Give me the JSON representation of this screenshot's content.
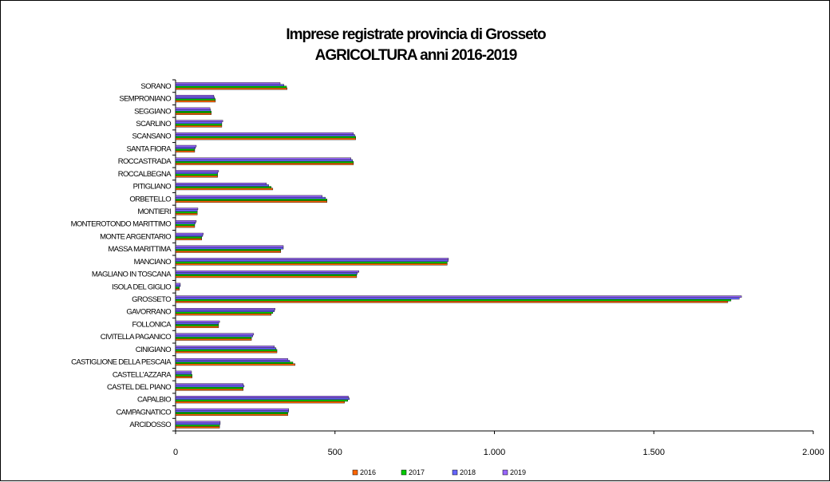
{
  "chart_data": {
    "type": "bar",
    "orientation": "horizontal",
    "title": [
      "Imprese registrate provincia di Grosseto",
      "AGRICOLTURA anni 2016-2019"
    ],
    "xlim": [
      0,
      2000
    ],
    "x_ticks": [
      "0",
      "500",
      "1.000",
      "1.500",
      "2.000"
    ],
    "x_tick_values": [
      0,
      500,
      1000,
      1500,
      2000
    ],
    "legend_position": "bottom",
    "categories": [
      "SORANO",
      "SEMPRONIANO",
      "SEGGIANO",
      "SCARLINO",
      "SCANSANO",
      "SANTA FIORA",
      "ROCCASTRADA",
      "ROCCALBEGNA",
      "PITIGLIANO",
      "ORBETELLO",
      "MONTIERI",
      "MONTEROTONDO MARITTIMO",
      "MONTE ARGENTARIO",
      "MASSA MARITTIMA",
      "MANCIANO",
      "MAGLIANO IN TOSCANA",
      "ISOLA DEL GIGLIO",
      "GROSSETO",
      "GAVORRANO",
      "FOLLONICA",
      "CIVITELLA PAGANICO",
      "CINIGIANO",
      "CASTIGLIONE DELLA PESCAIA",
      "CASTELL'AZZARA",
      "CASTEL DEL PIANO",
      "CAPALBIO",
      "CAMPAGNATICO",
      "ARCIDOSSO"
    ],
    "series": [
      {
        "name": "2016",
        "color": "#ff6600",
        "values": [
          350,
          125,
          112,
          145,
          565,
          60,
          558,
          132,
          305,
          475,
          68,
          60,
          82,
          330,
          852,
          568,
          12,
          1732,
          300,
          135,
          238,
          318,
          375,
          52,
          212,
          530,
          352,
          138
        ]
      },
      {
        "name": "2017",
        "color": "#00cc00",
        "values": [
          348,
          125,
          112,
          145,
          565,
          60,
          558,
          132,
          300,
          475,
          68,
          60,
          82,
          330,
          852,
          568,
          12,
          1742,
          305,
          135,
          238,
          318,
          368,
          52,
          212,
          540,
          352,
          138
        ]
      },
      {
        "name": "2018",
        "color": "#6666ff",
        "values": [
          340,
          122,
          110,
          145,
          562,
          62,
          555,
          132,
          292,
          470,
          68,
          62,
          85,
          338,
          855,
          570,
          15,
          1768,
          310,
          135,
          242,
          315,
          358,
          50,
          215,
          545,
          355,
          140
        ]
      },
      {
        "name": "2019",
        "color": "#9966ff",
        "values": [
          328,
          120,
          108,
          148,
          558,
          65,
          550,
          135,
          285,
          460,
          70,
          65,
          87,
          338,
          856,
          575,
          15,
          1775,
          312,
          138,
          245,
          310,
          352,
          50,
          212,
          542,
          355,
          140
        ]
      }
    ]
  }
}
